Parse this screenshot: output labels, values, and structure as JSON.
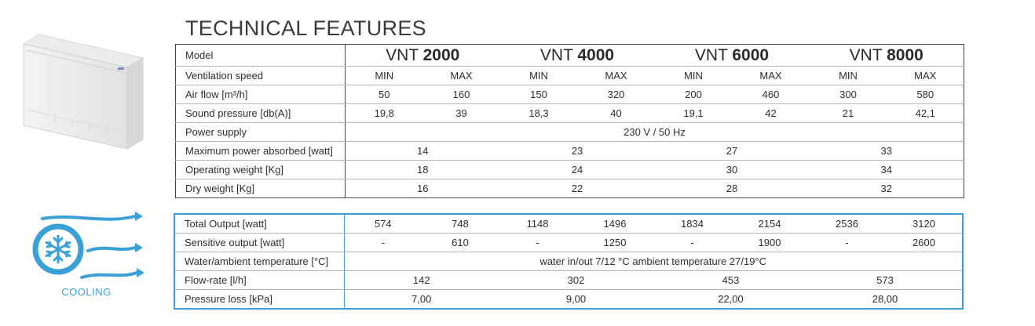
{
  "title": "TECHNICAL FEATURES",
  "tech": {
    "model_label": "Model",
    "models": [
      {
        "prefix": "VNT",
        "number": "2000"
      },
      {
        "prefix": "VNT",
        "number": "4000"
      },
      {
        "prefix": "VNT",
        "number": "6000"
      },
      {
        "prefix": "VNT",
        "number": "8000"
      }
    ],
    "speed": {
      "label": "Ventilation speed",
      "values": [
        "MIN",
        "MAX",
        "MIN",
        "MAX",
        "MIN",
        "MAX",
        "MIN",
        "MAX"
      ]
    },
    "airflow": {
      "label": "Air flow [m³/h]",
      "values": [
        "50",
        "160",
        "150",
        "320",
        "200",
        "460",
        "300",
        "580"
      ]
    },
    "sound": {
      "label": "Sound pressure  [db(A)]",
      "values": [
        "19,8",
        "39",
        "18,3",
        "40",
        "19,1",
        "42",
        "21",
        "42,1"
      ]
    },
    "power_supply": {
      "label": "Power supply",
      "value": "230 V / 50 Hz"
    },
    "max_power": {
      "label": "Maximum power absorbed [watt]",
      "values": [
        "14",
        "23",
        "27",
        "33"
      ]
    },
    "op_weight": {
      "label": "Operating weight [Kg]",
      "values": [
        "18",
        "24",
        "30",
        "34"
      ]
    },
    "dry_weight": {
      "label": "Dry weight [Kg]",
      "values": [
        "16",
        "22",
        "28",
        "32"
      ]
    }
  },
  "cooling": {
    "badge_label": "COOLING",
    "accent_color": "#3ba0d6",
    "total": {
      "label": "Total Output [watt]",
      "values": [
        "574",
        "748",
        "1148",
        "1496",
        "1834",
        "2154",
        "2536",
        "3120"
      ]
    },
    "sensitive": {
      "label": "Sensitive output [watt]",
      "values": [
        "-",
        "610",
        "-",
        "1250",
        "-",
        "1900",
        "-",
        "2600"
      ]
    },
    "water_temp": {
      "label": "Water/ambient temperature [°C]",
      "value": "water in/out 7/12 °C  ambient temperature  27/19°C"
    },
    "flow_rate": {
      "label": "Flow-rate [l/h]",
      "values": [
        "142",
        "302",
        "453",
        "573"
      ]
    },
    "pressure": {
      "label": "Pressure loss [kPa]",
      "values": [
        "7,00",
        "9,00",
        "22,00",
        "28,00"
      ]
    }
  }
}
